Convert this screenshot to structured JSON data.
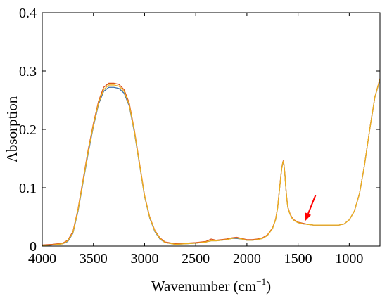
{
  "chart_data": {
    "type": "line",
    "title": "",
    "xlabel": "Wavenumber (cm",
    "xlabel_sup": "−1",
    "xlabel_close": ")",
    "ylabel": "Absorption",
    "xlim": [
      4000,
      700
    ],
    "x_reversed": true,
    "ylim": [
      0,
      0.4
    ],
    "x_ticks": [
      4000,
      3500,
      3000,
      2500,
      2000,
      1500,
      1000
    ],
    "x_tick_labels": [
      "4000",
      "3500",
      "3000",
      "2500",
      "2000",
      "1500",
      "1000"
    ],
    "y_ticks": [
      0,
      0.1,
      0.2,
      0.3,
      0.4
    ],
    "y_tick_labels": [
      "0",
      "0.1",
      "0.2",
      "0.3",
      "0.4"
    ],
    "grid": false,
    "legend": "none",
    "series": [
      {
        "color": "#3b6fa8",
        "x": [
          4000,
          3900,
          3800,
          3750,
          3700,
          3650,
          3600,
          3550,
          3500,
          3450,
          3400,
          3350,
          3300,
          3250,
          3200,
          3150,
          3100,
          3050,
          3000,
          2950,
          2900,
          2850,
          2800,
          2700,
          2600,
          2500,
          2400,
          2350,
          2300,
          2250,
          2200,
          2150,
          2100,
          2050,
          2000,
          1950,
          1900,
          1850,
          1800,
          1750,
          1720,
          1700,
          1680,
          1660,
          1650,
          1645,
          1640,
          1630,
          1620,
          1610,
          1600,
          1580,
          1560,
          1540,
          1500,
          1450,
          1400,
          1350,
          1300,
          1250,
          1200,
          1150,
          1100,
          1050,
          1000,
          950,
          900,
          850,
          800,
          750,
          700
        ],
        "y": [
          0.0,
          0.002,
          0.004,
          0.008,
          0.022,
          0.06,
          0.11,
          0.16,
          0.205,
          0.243,
          0.265,
          0.272,
          0.272,
          0.27,
          0.262,
          0.24,
          0.195,
          0.14,
          0.085,
          0.048,
          0.025,
          0.012,
          0.006,
          0.003,
          0.004,
          0.005,
          0.007,
          0.009,
          0.009,
          0.01,
          0.011,
          0.013,
          0.013,
          0.012,
          0.01,
          0.01,
          0.011,
          0.013,
          0.018,
          0.03,
          0.045,
          0.065,
          0.1,
          0.133,
          0.142,
          0.145,
          0.142,
          0.125,
          0.1,
          0.08,
          0.066,
          0.055,
          0.048,
          0.044,
          0.04,
          0.038,
          0.037,
          0.036,
          0.036,
          0.036,
          0.036,
          0.036,
          0.036,
          0.038,
          0.045,
          0.06,
          0.09,
          0.14,
          0.2,
          0.255,
          0.285
        ]
      },
      {
        "color": "#d9541a",
        "x": [
          4000,
          3900,
          3800,
          3750,
          3700,
          3650,
          3600,
          3550,
          3500,
          3450,
          3400,
          3350,
          3300,
          3250,
          3200,
          3150,
          3100,
          3050,
          3000,
          2950,
          2900,
          2850,
          2800,
          2700,
          2600,
          2500,
          2400,
          2350,
          2300,
          2250,
          2200,
          2150,
          2100,
          2050,
          2000,
          1950,
          1900,
          1850,
          1800,
          1750,
          1720,
          1700,
          1680,
          1660,
          1650,
          1645,
          1640,
          1630,
          1620,
          1610,
          1600,
          1580,
          1560,
          1540,
          1500,
          1450,
          1400,
          1350,
          1300,
          1250,
          1200,
          1150,
          1100,
          1050,
          1000,
          950,
          900,
          850,
          800,
          750,
          700
        ],
        "y": [
          0.002,
          0.003,
          0.005,
          0.01,
          0.025,
          0.064,
          0.115,
          0.166,
          0.21,
          0.248,
          0.272,
          0.279,
          0.279,
          0.277,
          0.268,
          0.245,
          0.199,
          0.143,
          0.087,
          0.05,
          0.027,
          0.014,
          0.007,
          0.004,
          0.005,
          0.006,
          0.008,
          0.012,
          0.01,
          0.011,
          0.012,
          0.014,
          0.015,
          0.013,
          0.011,
          0.011,
          0.012,
          0.014,
          0.019,
          0.031,
          0.046,
          0.066,
          0.101,
          0.134,
          0.143,
          0.146,
          0.143,
          0.126,
          0.101,
          0.081,
          0.067,
          0.056,
          0.049,
          0.045,
          0.041,
          0.039,
          0.037,
          0.036,
          0.036,
          0.036,
          0.036,
          0.036,
          0.036,
          0.038,
          0.045,
          0.06,
          0.09,
          0.14,
          0.2,
          0.255,
          0.287
        ]
      },
      {
        "color": "#edb120",
        "x": [
          4000,
          3900,
          3800,
          3750,
          3700,
          3650,
          3600,
          3550,
          3500,
          3450,
          3400,
          3350,
          3300,
          3250,
          3200,
          3150,
          3100,
          3050,
          3000,
          2950,
          2900,
          2850,
          2800,
          2700,
          2600,
          2500,
          2400,
          2350,
          2300,
          2250,
          2200,
          2150,
          2100,
          2050,
          2000,
          1950,
          1900,
          1850,
          1800,
          1750,
          1720,
          1700,
          1680,
          1660,
          1650,
          1645,
          1640,
          1630,
          1620,
          1610,
          1600,
          1580,
          1560,
          1540,
          1500,
          1450,
          1400,
          1350,
          1300,
          1250,
          1200,
          1150,
          1100,
          1050,
          1000,
          950,
          900,
          850,
          800,
          750,
          700
        ],
        "y": [
          0.001,
          0.002,
          0.004,
          0.009,
          0.023,
          0.062,
          0.112,
          0.163,
          0.207,
          0.245,
          0.268,
          0.276,
          0.276,
          0.274,
          0.265,
          0.242,
          0.197,
          0.141,
          0.086,
          0.049,
          0.026,
          0.013,
          0.006,
          0.003,
          0.004,
          0.005,
          0.007,
          0.009,
          0.009,
          0.01,
          0.011,
          0.013,
          0.014,
          0.012,
          0.01,
          0.01,
          0.011,
          0.013,
          0.018,
          0.03,
          0.045,
          0.065,
          0.1,
          0.133,
          0.142,
          0.145,
          0.142,
          0.125,
          0.1,
          0.08,
          0.066,
          0.055,
          0.048,
          0.044,
          0.04,
          0.038,
          0.037,
          0.036,
          0.036,
          0.036,
          0.036,
          0.036,
          0.036,
          0.038,
          0.045,
          0.06,
          0.09,
          0.14,
          0.2,
          0.255,
          0.286
        ]
      }
    ],
    "annotations": [
      {
        "type": "arrow",
        "color": "#ff0000",
        "from": [
          1330,
          0.087
        ],
        "to": [
          1430,
          0.043
        ]
      }
    ]
  }
}
